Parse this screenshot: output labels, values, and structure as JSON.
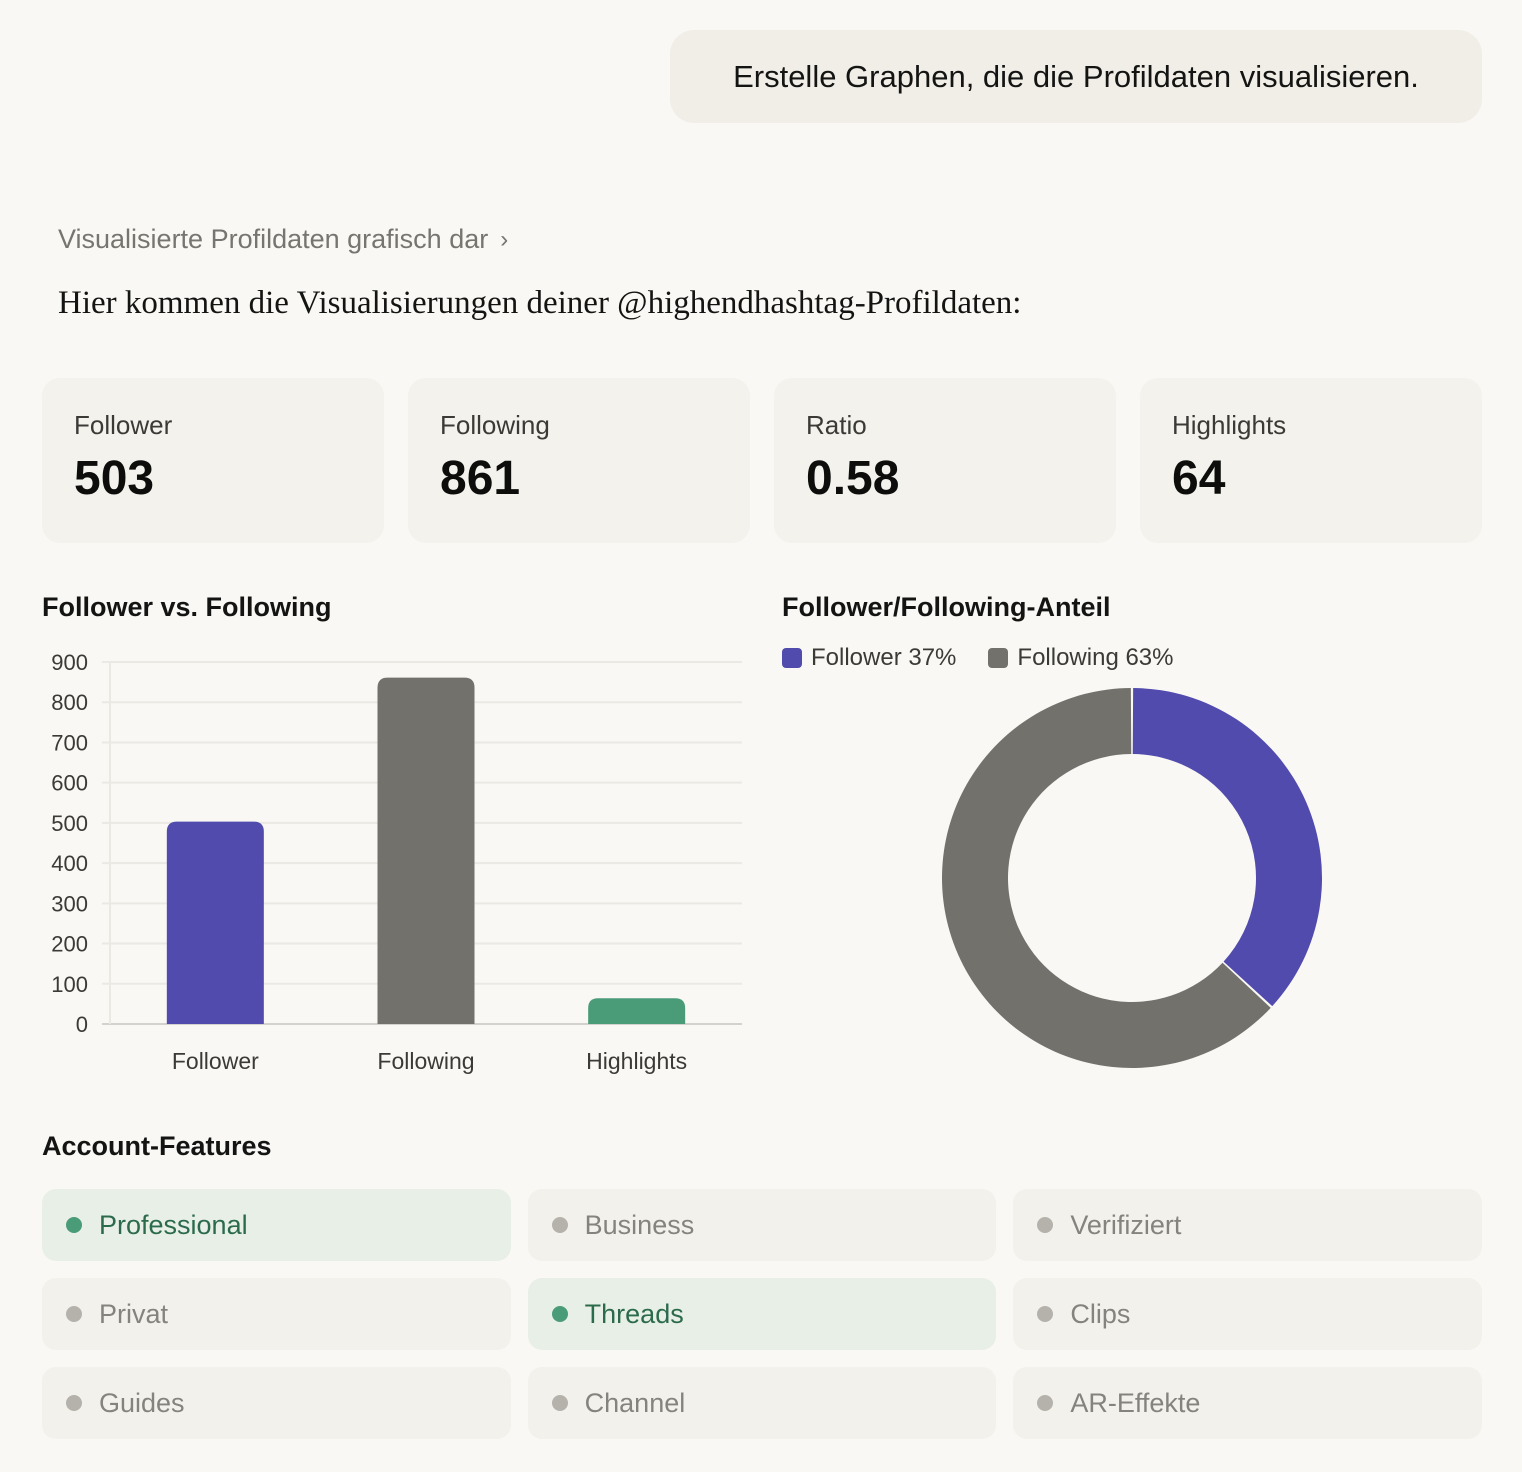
{
  "user_message": "Erstelle Graphen, die die Profildaten visualisieren.",
  "thought_summary": "Visualisierte Profildaten grafisch dar",
  "thought_chevron": "›",
  "intro": "Hier kommen die Visualisierungen deiner @highendhashtag-Profildaten:",
  "stats": [
    {
      "label": "Follower",
      "value": "503"
    },
    {
      "label": "Following",
      "value": "861"
    },
    {
      "label": "Ratio",
      "value": "0.58"
    },
    {
      "label": "Highlights",
      "value": "64"
    }
  ],
  "features_title": "Account-Features",
  "features": [
    {
      "label": "Professional",
      "active": true
    },
    {
      "label": "Business",
      "active": false
    },
    {
      "label": "Verifiziert",
      "active": false
    },
    {
      "label": "Privat",
      "active": false
    },
    {
      "label": "Threads",
      "active": true
    },
    {
      "label": "Clips",
      "active": false
    },
    {
      "label": "Guides",
      "active": false
    },
    {
      "label": "Channel",
      "active": false
    },
    {
      "label": "AR-Effekte",
      "active": false
    }
  ],
  "colors": {
    "follower": "#514bae",
    "following": "#73716c",
    "highlights": "#4a9b78",
    "grid": "#ebe9e4",
    "axis": "#d4d2cc"
  },
  "chart_data": [
    {
      "type": "bar",
      "title": "Follower vs. Following",
      "categories": [
        "Follower",
        "Following",
        "Highlights"
      ],
      "values": [
        503,
        861,
        64
      ],
      "ylim": [
        0,
        900
      ],
      "yticks": [
        "0",
        "100",
        "200",
        "300",
        "400",
        "500",
        "600",
        "700",
        "800",
        "900"
      ],
      "grid": true,
      "xlabel": "",
      "ylabel": ""
    },
    {
      "type": "pie",
      "title": "Follower/Following-Anteil",
      "labels": [
        "Follower",
        "Following"
      ],
      "values": [
        503,
        861
      ],
      "legend": [
        "Follower 37%",
        "Following 63%"
      ],
      "legend_position": "top-left",
      "donut": true
    }
  ]
}
